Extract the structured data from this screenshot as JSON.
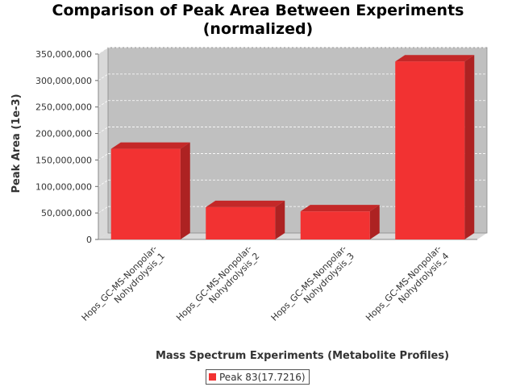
{
  "chart_data": {
    "type": "bar",
    "title_lines": [
      "Comparison of Peak Area Between Experiments",
      "(normalized)"
    ],
    "xlabel": "Mass Spectrum Experiments (Metabolite Profiles)",
    "ylabel": "Peak Area (1e-3)",
    "categories": [
      [
        "Hops_GC-MS-Nonpolar-",
        "Nohydrolysis_1"
      ],
      [
        "Hops_GC-MS-Nonpolar-",
        "Nohydrolysis_2"
      ],
      [
        "Hops_GC-MS-Nonpolar-",
        "Nohydrolysis_3"
      ],
      [
        "Hops_GC-MS-Nonpolar-",
        "Nohydrolysis_4"
      ]
    ],
    "series": [
      {
        "name": "Peak 83(17.7216)",
        "values": [
          171000000,
          61000000,
          53000000,
          336000000
        ]
      }
    ],
    "ylim": [
      0,
      350000000
    ],
    "yticks": [
      0,
      50000000,
      100000000,
      150000000,
      200000000,
      250000000,
      300000000,
      350000000
    ],
    "ytick_labels": [
      "0",
      "50,000,000",
      "100,000,000",
      "150,000,000",
      "200,000,000",
      "250,000,000",
      "300,000,000",
      "350,000,000"
    ],
    "grid": true,
    "legend_position": "bottom",
    "style": "3d",
    "colors": {
      "bar": "#f23232",
      "bar_top": "#c42828",
      "bar_side": "#ad2222",
      "plot_bg": "#c0c0c0",
      "wall": "#d9d9d9"
    }
  }
}
